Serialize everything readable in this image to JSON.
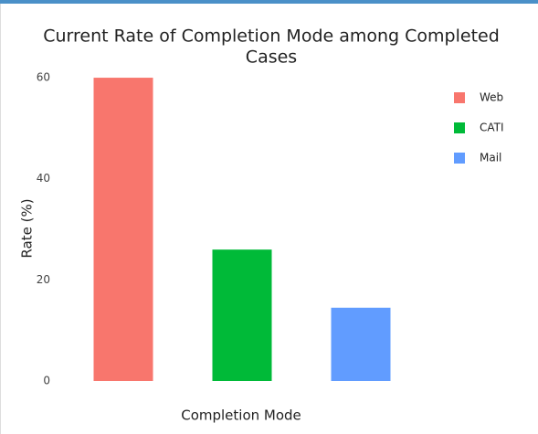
{
  "chart_data": {
    "type": "bar",
    "title": [
      "Current Rate of Completion Mode among Completed",
      "Cases"
    ],
    "x_label": "Completion Mode",
    "y_label": "Rate (%)",
    "categories": [
      "Web",
      "CATI",
      "Mail"
    ],
    "values": [
      60,
      26,
      14.5
    ],
    "colors": [
      "#f8766d",
      "#00ba38",
      "#619cff"
    ],
    "ylim": [
      0,
      62
    ],
    "yticks": [
      0,
      20,
      40,
      60
    ],
    "grid": false,
    "legend": "top-right"
  }
}
